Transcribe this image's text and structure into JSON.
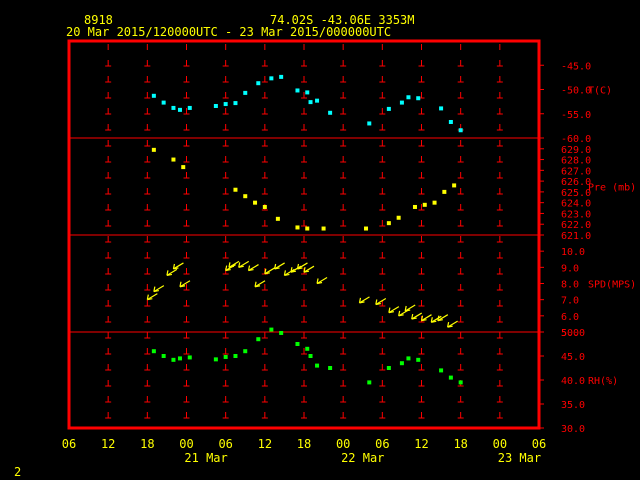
{
  "header": {
    "station_id": "8918",
    "location": "74.02S   -43.06E   3353M",
    "time_range": "20 Mar 2015/120000UTC - 23 Mar 2015/000000UTC"
  },
  "footer": {
    "page_number": "2"
  },
  "colors": {
    "frame": "#ff0000",
    "text_yellow": "#ffff00",
    "axis_red": "#ff0000",
    "temperature": "#00ffff",
    "pressure": "#ffff00",
    "wind": "#ffff00",
    "humidity": "#00ff00"
  },
  "chart_data": {
    "type": "scatter",
    "x_axis": {
      "unit": "hours since 20 Mar 2015 06UTC",
      "range": [
        0,
        72
      ],
      "tick_labels": [
        "06",
        "12",
        "18",
        "00",
        "06",
        "12",
        "18",
        "00",
        "06",
        "12",
        "18",
        "00",
        "06"
      ],
      "date_labels": [
        {
          "label": "21 Mar",
          "hour": 21
        },
        {
          "label": "22 Mar",
          "hour": 45
        },
        {
          "label": "23 Mar",
          "hour": 69
        }
      ]
    },
    "panels": [
      {
        "name": "temperature",
        "label": "T(C)",
        "ylim": [
          -60,
          -40
        ],
        "tick_labels": [
          "-45.0",
          "-50.0",
          "-55.0",
          "-60.0"
        ],
        "tick_values": [
          -45,
          -50,
          -55,
          -60
        ],
        "x": [
          13,
          14.5,
          16,
          17,
          18.5,
          22.5,
          24,
          25.5,
          27,
          29,
          31,
          32.5,
          35,
          36.5,
          37,
          38,
          40,
          46,
          49,
          51,
          52,
          53.5,
          57,
          58.5,
          60
        ],
        "values": [
          -51.3,
          -52.7,
          -53.8,
          -54.2,
          -53.8,
          -53.4,
          -53.0,
          -52.8,
          -50.7,
          -48.7,
          -47.7,
          -47.4,
          -50.2,
          -50.6,
          -52.6,
          -52.3,
          -54.8,
          -57.0,
          -54.0,
          -52.7,
          -51.6,
          -51.8,
          -53.9,
          -56.7,
          -58.4
        ]
      },
      {
        "name": "pressure",
        "label": "Pre (mb)",
        "ylim": [
          621,
          630
        ],
        "tick_labels": [
          "629.0",
          "628.0",
          "627.0",
          "626.0",
          "625.0",
          "624.0",
          "623.0",
          "622.0",
          "621.0"
        ],
        "tick_values": [
          629,
          628,
          627,
          626,
          625,
          624,
          623,
          622,
          621
        ],
        "x": [
          13,
          16,
          17.5,
          25.5,
          27,
          28.5,
          30,
          32,
          35,
          36.5,
          39,
          45.5,
          49,
          50.5,
          53,
          54.5,
          56,
          57.5,
          59
        ],
        "values": [
          628.9,
          628.0,
          627.3,
          625.2,
          624.6,
          624.0,
          623.6,
          622.5,
          621.7,
          621.6,
          621.6,
          621.6,
          622.1,
          622.6,
          623.6,
          623.8,
          624.0,
          625.0,
          625.6
        ]
      },
      {
        "name": "wind",
        "label": "SPD(MPS)",
        "ylim": [
          5,
          11
        ],
        "tick_labels": [
          "10.0",
          "9.0",
          "8.0",
          "7.0",
          "6.0",
          "5.0"
        ],
        "tick_values": [
          10,
          9,
          8,
          7,
          6,
          5
        ],
        "x": [
          12,
          13,
          15,
          16,
          17,
          24,
          24.5,
          26,
          27.5,
          28.5,
          30,
          31.5,
          33,
          34,
          35,
          36,
          38,
          44.5,
          47,
          49,
          50.5,
          51.5,
          52.5,
          54,
          55.5,
          56.5,
          58
        ],
        "values": [
          7.0,
          7.5,
          8.5,
          8.9,
          7.8,
          8.8,
          9.0,
          9.0,
          8.8,
          7.8,
          8.6,
          8.9,
          8.5,
          8.7,
          8.9,
          8.7,
          8.0,
          6.8,
          6.7,
          6.2,
          6.0,
          6.3,
          5.8,
          5.7,
          5.6,
          5.7,
          5.3
        ]
      },
      {
        "name": "humidity",
        "label": "RH(%)",
        "ylim": [
          30,
          50
        ],
        "tick_labels": [
          "50.0",
          "45.0",
          "40.0",
          "35.0",
          "30.0"
        ],
        "tick_values": [
          50,
          45,
          40,
          35,
          30
        ],
        "x": [
          13,
          14.5,
          16,
          17,
          18.5,
          22.5,
          24,
          25.5,
          27,
          29,
          31,
          32.5,
          35,
          36.5,
          37,
          38,
          40,
          46,
          49,
          51,
          52,
          53.5,
          57,
          58.5,
          60
        ],
        "values": [
          46.0,
          45.0,
          44.2,
          44.5,
          44.7,
          44.3,
          44.8,
          45.0,
          46.0,
          48.5,
          50.5,
          49.8,
          47.5,
          46.5,
          45.0,
          43.0,
          42.5,
          39.5,
          42.5,
          43.5,
          44.5,
          44.2,
          42.0,
          40.5,
          39.5
        ]
      }
    ]
  }
}
